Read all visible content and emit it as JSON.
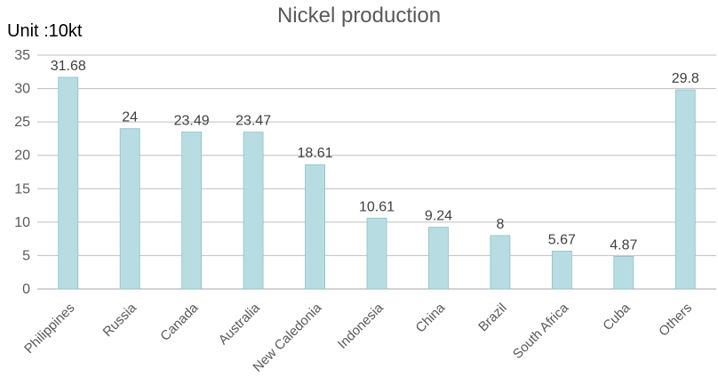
{
  "chart_data": {
    "type": "bar",
    "title": "Nickel production",
    "unit_label": "Unit :10kt",
    "categories": [
      "Philippines",
      "Russia",
      "Canada",
      "Australia",
      "New Caledonia",
      "Indonesia",
      "China",
      "Brazil",
      "South Africa",
      "Cuba",
      "Others"
    ],
    "values": [
      31.68,
      24,
      23.49,
      23.47,
      18.61,
      10.61,
      9.24,
      8,
      5.67,
      4.87,
      29.8
    ],
    "data_labels": [
      "31.68",
      "24",
      "23.49",
      "23.47",
      "18.61",
      "10.61",
      "9.24",
      "8",
      "5.67",
      "4.87",
      "29.8"
    ],
    "y_ticks": [
      0,
      5,
      10,
      15,
      20,
      25,
      30,
      35
    ],
    "ylim": [
      0,
      35
    ],
    "grid": true,
    "legend": "none",
    "bar_color": "#b7dde3",
    "bar_border_color": "#8fbfc7",
    "grid_color": "#bfbfbf",
    "text_color": "#595959"
  }
}
